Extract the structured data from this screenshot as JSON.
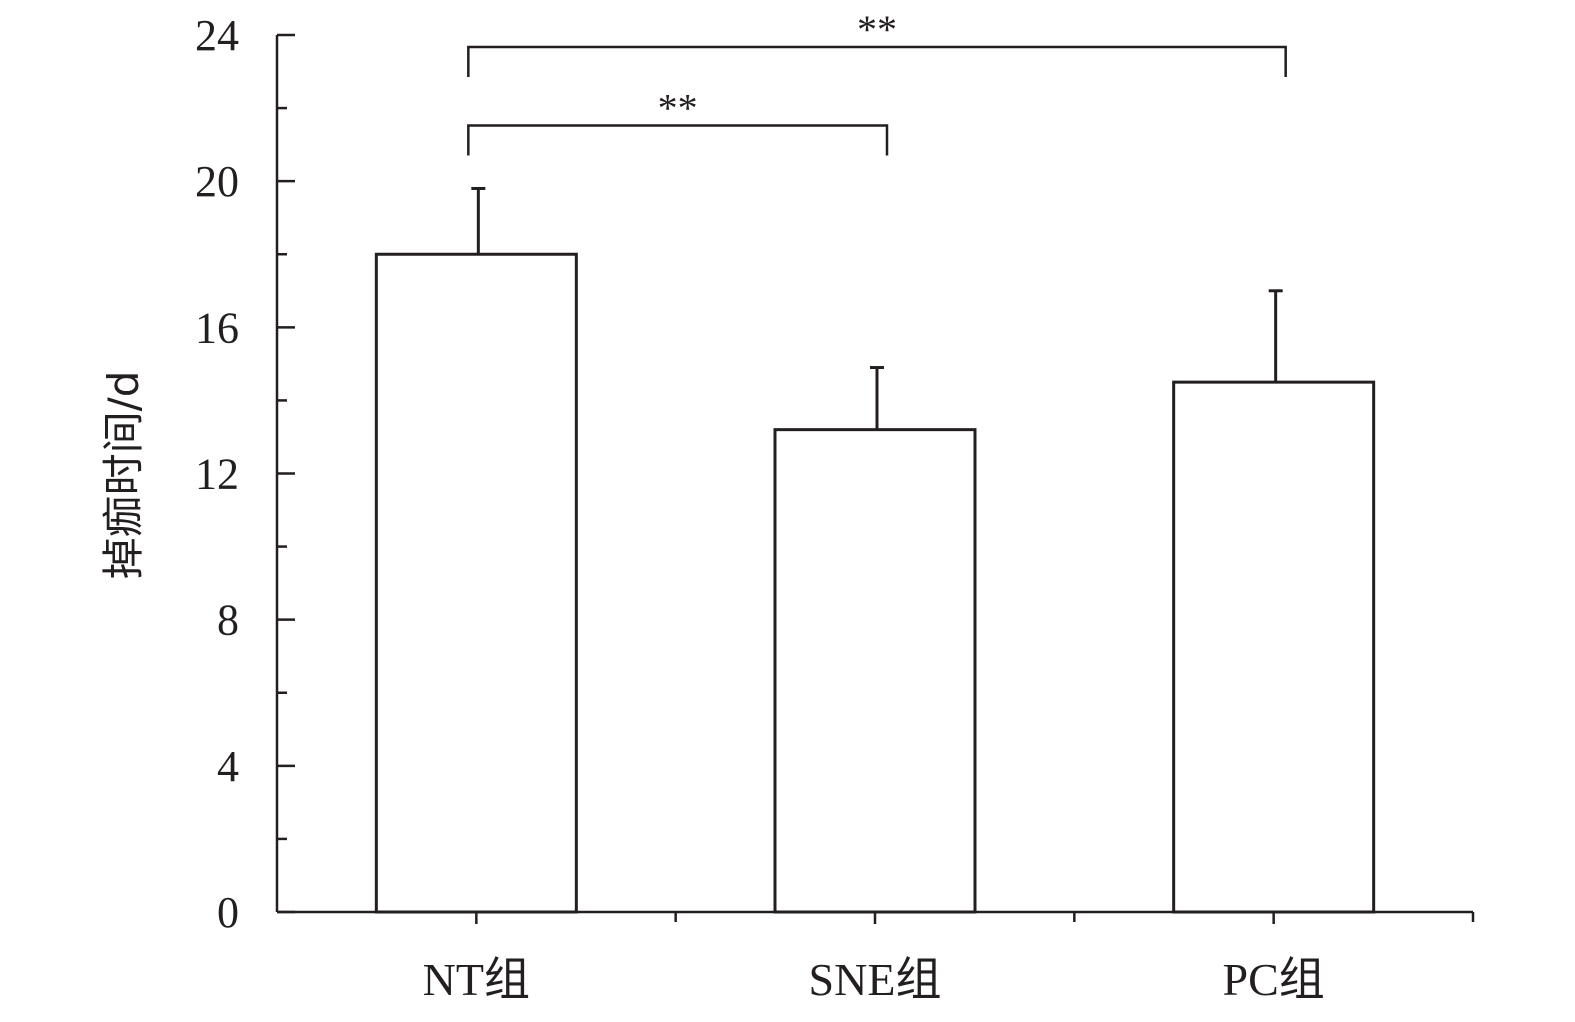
{
  "chart_data": {
    "type": "bar",
    "categories": [
      "NT组",
      "SNE组",
      "PC组"
    ],
    "values": [
      18.0,
      13.2,
      14.5
    ],
    "errors": [
      1.8,
      1.7,
      2.5
    ],
    "ylabel": "掉痂时间/d",
    "xlabel": "",
    "ylim": [
      0,
      24
    ],
    "yticks": [
      0,
      4,
      8,
      12,
      16,
      20,
      24
    ],
    "minor_tick_step": 2,
    "grid": false,
    "legend": "none",
    "significance": [
      {
        "from": 0,
        "to": 1,
        "label": "**"
      },
      {
        "from": 0,
        "to": 2,
        "label": "**"
      }
    ],
    "colors": {
      "bar_fill": "#ffffff",
      "stroke": "#231f20"
    }
  }
}
